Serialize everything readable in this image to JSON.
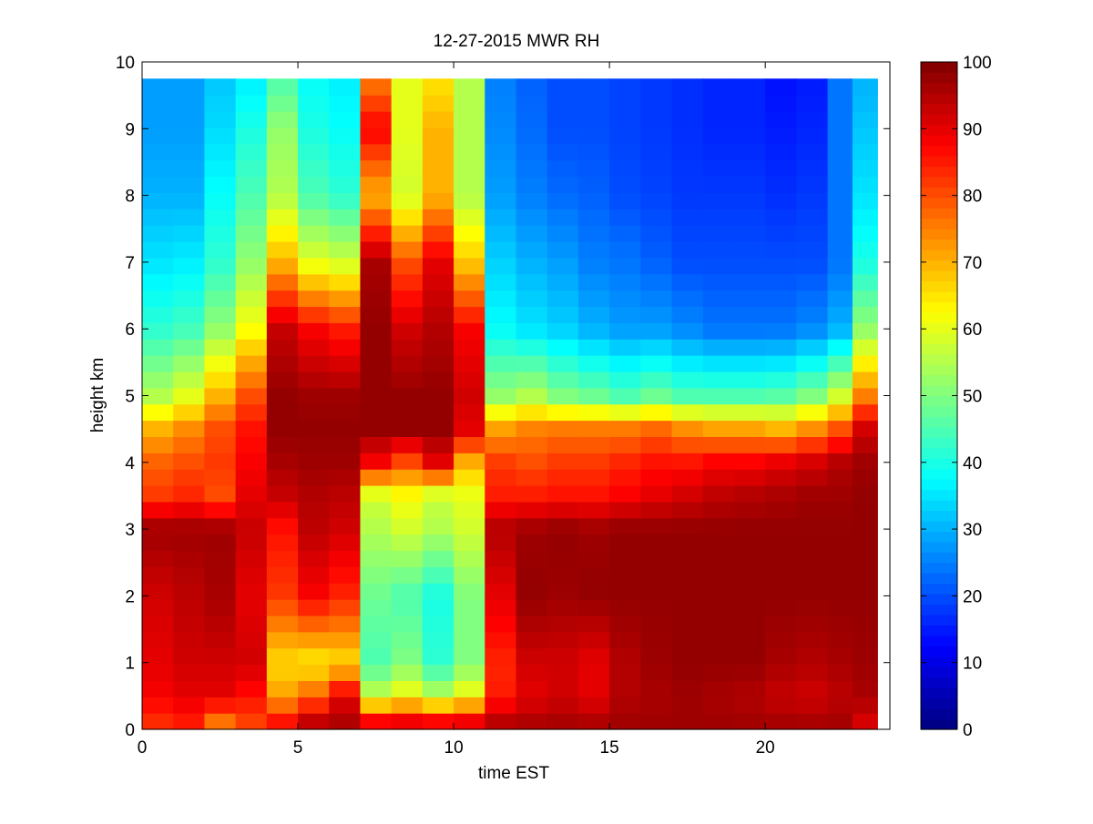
{
  "chart_data": {
    "type": "heatmap",
    "title": "12-27-2015 MWR RH",
    "xlabel": "time EST",
    "ylabel": "height km",
    "xlim": [
      0,
      24
    ],
    "ylim": [
      0,
      10
    ],
    "x_ticks": [
      0,
      5,
      10,
      15,
      20
    ],
    "y_ticks": [
      0,
      1,
      2,
      3,
      4,
      5,
      6,
      7,
      8,
      9,
      10
    ],
    "colorbar": {
      "range": [
        0,
        100
      ],
      "ticks": [
        0,
        10,
        20,
        30,
        40,
        50,
        60,
        70,
        80,
        90,
        100
      ],
      "colormap": "jet"
    },
    "grid": false,
    "data_extent": {
      "x": [
        0,
        23.6
      ],
      "y": [
        0,
        9.75
      ]
    },
    "columns_time": [
      0.5,
      1.5,
      2.5,
      3.5,
      4.5,
      5.5,
      6.5,
      7.5,
      8.5,
      9.5,
      10.5,
      11.5,
      12.5,
      13.5,
      14.5,
      15.5,
      16.5,
      17.5,
      18.5,
      19.5,
      20.5,
      21.5,
      22.5,
      23.1
    ],
    "profile_knots_height": [
      0,
      0.5,
      1,
      2,
      3,
      3.5,
      4,
      4.5,
      5,
      6,
      7,
      8,
      9,
      9.75
    ],
    "rh_profiles": [
      [
        82,
        88,
        90,
        92,
        97,
        82,
        78,
        70,
        55,
        42,
        35,
        30,
        28,
        28
      ],
      [
        84,
        90,
        92,
        94,
        97,
        84,
        80,
        74,
        60,
        44,
        36,
        30,
        28,
        28
      ],
      [
        72,
        90,
        92,
        96,
        97,
        80,
        82,
        80,
        70,
        52,
        42,
        38,
        34,
        32
      ],
      [
        80,
        86,
        92,
        90,
        93,
        90,
        88,
        86,
        80,
        62,
        52,
        45,
        40,
        36
      ],
      [
        90,
        72,
        66,
        82,
        86,
        93,
        96,
        98,
        98,
        93,
        70,
        55,
        52,
        45
      ],
      [
        98,
        78,
        64,
        88,
        94,
        95,
        97,
        98,
        97,
        88,
        60,
        45,
        40,
        38
      ],
      [
        97,
        90,
        66,
        84,
        92,
        94,
        97,
        98,
        97,
        85,
        58,
        42,
        38,
        36
      ],
      [
        97,
        57,
        45,
        48,
        55,
        58,
        88,
        98,
        98,
        98,
        96,
        70,
        88,
        75
      ],
      [
        97,
        62,
        50,
        45,
        58,
        62,
        80,
        98,
        98,
        92,
        80,
        58,
        60,
        60
      ],
      [
        97,
        56,
        42,
        40,
        55,
        57,
        90,
        98,
        98,
        95,
        90,
        70,
        70,
        65
      ],
      [
        97,
        62,
        50,
        50,
        58,
        60,
        70,
        90,
        92,
        88,
        68,
        55,
        55,
        55
      ],
      [
        97,
        85,
        84,
        90,
        95,
        85,
        82,
        72,
        52,
        38,
        33,
        28,
        26,
        25
      ],
      [
        97,
        90,
        92,
        98,
        97,
        85,
        80,
        75,
        55,
        35,
        30,
        25,
        23,
        22
      ],
      [
        97,
        92,
        92,
        97,
        98,
        86,
        82,
        76,
        50,
        33,
        28,
        23,
        20,
        20
      ],
      [
        97,
        90,
        90,
        98,
        97,
        86,
        82,
        76,
        48,
        30,
        25,
        22,
        20,
        20
      ],
      [
        97,
        95,
        95,
        98,
        98,
        88,
        84,
        76,
        45,
        28,
        24,
        20,
        19,
        19
      ],
      [
        97,
        96,
        97,
        98,
        98,
        90,
        86,
        78,
        48,
        28,
        22,
        19,
        18,
        18
      ],
      [
        97,
        97,
        98,
        98,
        98,
        92,
        86,
        74,
        45,
        26,
        20,
        18,
        17,
        17
      ],
      [
        97,
        96,
        98,
        98,
        98,
        94,
        88,
        72,
        45,
        24,
        20,
        18,
        16,
        16
      ],
      [
        97,
        95,
        98,
        98,
        98,
        95,
        88,
        72,
        45,
        24,
        20,
        18,
        16,
        16
      ],
      [
        97,
        93,
        96,
        98,
        98,
        96,
        90,
        70,
        46,
        24,
        20,
        17,
        15,
        14
      ],
      [
        97,
        92,
        95,
        98,
        98,
        97,
        92,
        74,
        50,
        26,
        20,
        18,
        16,
        15
      ],
      [
        97,
        94,
        96,
        98,
        98,
        97,
        95,
        80,
        58,
        30,
        24,
        24,
        24,
        24
      ],
      [
        90,
        96,
        97,
        98,
        98,
        98,
        97,
        92,
        75,
        52,
        40,
        35,
        32,
        30
      ]
    ]
  }
}
